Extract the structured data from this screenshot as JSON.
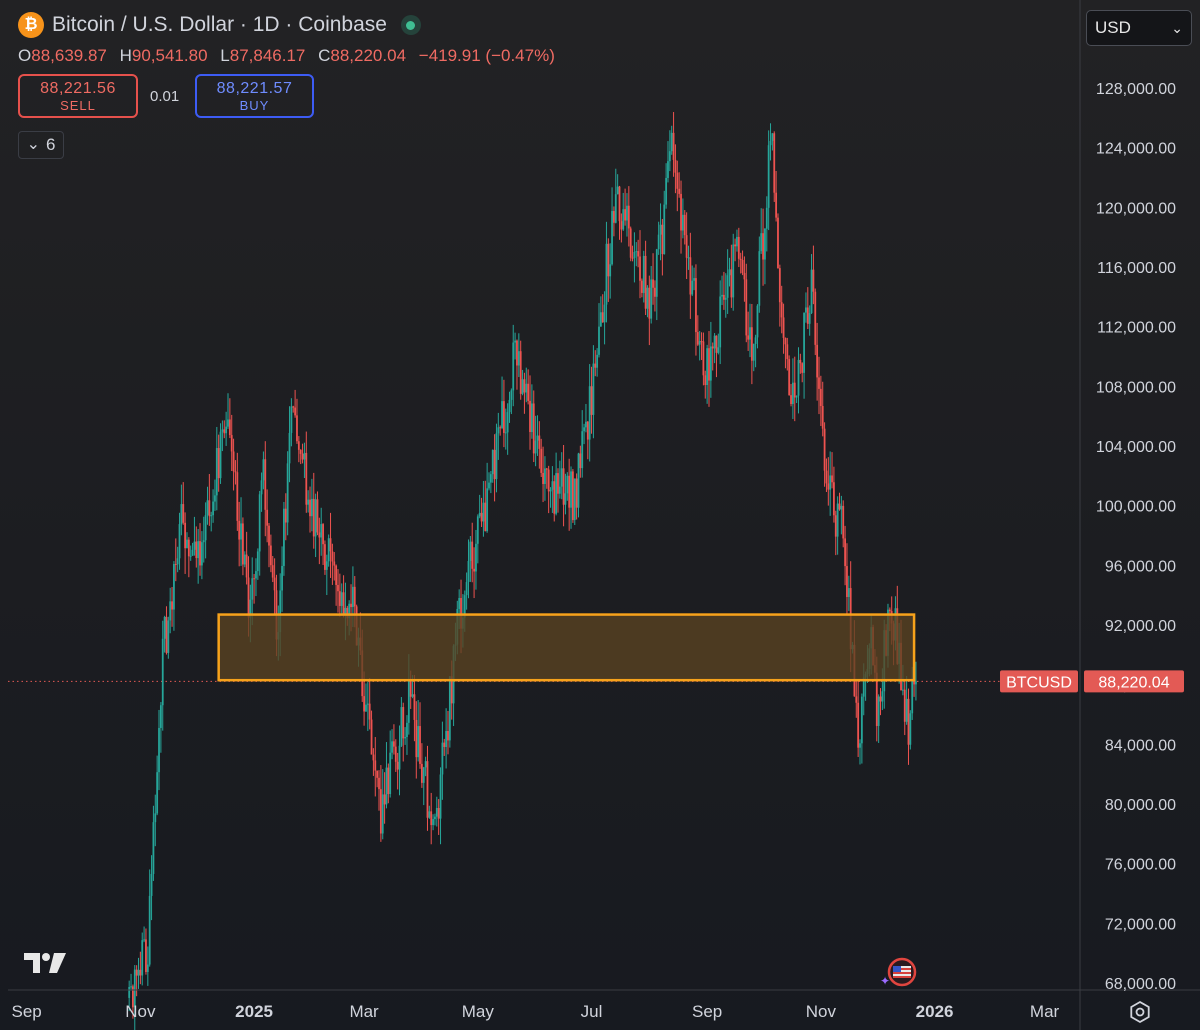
{
  "header": {
    "symbol_title": "Bitcoin / U.S. Dollar · 1D · Coinbase",
    "logo_glyph": "₿",
    "logo_color": "#f7931a",
    "live_status_color": "#3fbf93"
  },
  "ohlc": {
    "o_label": "O",
    "o_value": "88,639.87",
    "h_label": "H",
    "h_value": "90,541.80",
    "l_label": "L",
    "l_value": "87,846.17",
    "c_label": "C",
    "c_value": "88,220.04",
    "change": "−419.91 (−0.47%)"
  },
  "trade": {
    "sell_price": "88,221.56",
    "sell_label": "SELL",
    "buy_price": "88,221.57",
    "buy_label": "BUY",
    "spread": "0.01"
  },
  "indicators_toggle": {
    "chevron": "⌄",
    "count": "6"
  },
  "currency_select": {
    "value": "USD"
  },
  "colors": {
    "up": "#26a69a",
    "down": "#ef5350",
    "zone_border": "#f7a21b",
    "zone_fill": "#5a4221",
    "price_tag": "#e35a55",
    "grid_text": "#d1d4dc"
  },
  "chart_data": {
    "type": "candlestick",
    "title": "Bitcoin / U.S. Dollar · 1D · Coinbase",
    "symbol": "BTCUSD",
    "last_price": 88220.04,
    "last_price_label": "88,220.04",
    "ylim": [
      66800,
      131000
    ],
    "y_ticks": [
      {
        "value": 68000,
        "label": "68,000.00"
      },
      {
        "value": 72000,
        "label": "72,000.00"
      },
      {
        "value": 76000,
        "label": "76,000.00"
      },
      {
        "value": 80000,
        "label": "80,000.00"
      },
      {
        "value": 84000,
        "label": "84,000.00"
      },
      {
        "value": 88000,
        "label": "88,000.00"
      },
      {
        "value": 92000,
        "label": "92,000.00"
      },
      {
        "value": 96000,
        "label": "96,000.00"
      },
      {
        "value": 100000,
        "label": "100,000.00"
      },
      {
        "value": 104000,
        "label": "104,000.00"
      },
      {
        "value": 108000,
        "label": "108,000.00"
      },
      {
        "value": 112000,
        "label": "112,000.00"
      },
      {
        "value": 116000,
        "label": "116,000.00"
      },
      {
        "value": 120000,
        "label": "120,000.00"
      },
      {
        "value": 124000,
        "label": "124,000.00"
      },
      {
        "value": 128000,
        "label": "128,000.00"
      }
    ],
    "x_range": [
      "2024-08-22",
      "2026-03-20"
    ],
    "x_ticks": [
      {
        "date": "2024-09-01",
        "label": "Sep",
        "bold": false
      },
      {
        "date": "2024-11-01",
        "label": "Nov",
        "bold": false
      },
      {
        "date": "2025-01-01",
        "label": "2025",
        "bold": true
      },
      {
        "date": "2025-03-01",
        "label": "Mar",
        "bold": false
      },
      {
        "date": "2025-05-01",
        "label": "May",
        "bold": false
      },
      {
        "date": "2025-07-01",
        "label": "Jul",
        "bold": false
      },
      {
        "date": "2025-09-01",
        "label": "Sep",
        "bold": false
      },
      {
        "date": "2025-11-01",
        "label": "Nov",
        "bold": false
      },
      {
        "date": "2026-01-01",
        "label": "2026",
        "bold": true
      },
      {
        "date": "2026-03-01",
        "label": "Mar",
        "bold": false
      }
    ],
    "zone": {
      "start": "2024-12-13",
      "end": "2025-12-21",
      "top": 92700,
      "bottom": 88300
    },
    "price_path": [
      {
        "date": "2024-10-25",
        "close": 67000
      },
      {
        "date": "2024-11-05",
        "close": 70500
      },
      {
        "date": "2024-11-13",
        "close": 90000
      },
      {
        "date": "2024-11-22",
        "close": 98500
      },
      {
        "date": "2024-12-05",
        "close": 97500
      },
      {
        "date": "2024-12-17",
        "close": 106500
      },
      {
        "date": "2024-12-30",
        "close": 93000
      },
      {
        "date": "2025-01-06",
        "close": 101500
      },
      {
        "date": "2025-01-13",
        "close": 91500
      },
      {
        "date": "2025-01-21",
        "close": 106000
      },
      {
        "date": "2025-02-03",
        "close": 99000
      },
      {
        "date": "2025-02-24",
        "close": 92500
      },
      {
        "date": "2025-03-04",
        "close": 84000
      },
      {
        "date": "2025-03-10",
        "close": 79500
      },
      {
        "date": "2025-03-25",
        "close": 87000
      },
      {
        "date": "2025-04-08",
        "close": 78000
      },
      {
        "date": "2025-04-22",
        "close": 93500
      },
      {
        "date": "2025-05-08",
        "close": 101500
      },
      {
        "date": "2025-05-22",
        "close": 110500
      },
      {
        "date": "2025-06-05",
        "close": 101500
      },
      {
        "date": "2025-06-22",
        "close": 100500
      },
      {
        "date": "2025-07-03",
        "close": 109500
      },
      {
        "date": "2025-07-14",
        "close": 121000
      },
      {
        "date": "2025-08-03",
        "close": 113500
      },
      {
        "date": "2025-08-13",
        "close": 123500
      },
      {
        "date": "2025-08-31",
        "close": 108500
      },
      {
        "date": "2025-09-18",
        "close": 117500
      },
      {
        "date": "2025-09-25",
        "close": 109500
      },
      {
        "date": "2025-10-06",
        "close": 125500
      },
      {
        "date": "2025-10-10",
        "close": 113000
      },
      {
        "date": "2025-10-17",
        "close": 106500
      },
      {
        "date": "2025-10-27",
        "close": 114500
      },
      {
        "date": "2025-11-04",
        "close": 101500
      },
      {
        "date": "2025-11-13",
        "close": 98000
      },
      {
        "date": "2025-11-21",
        "close": 84500
      },
      {
        "date": "2025-11-27",
        "close": 91500
      },
      {
        "date": "2025-12-01",
        "close": 86500
      },
      {
        "date": "2025-12-09",
        "close": 93500
      },
      {
        "date": "2025-12-18",
        "close": 85500
      },
      {
        "date": "2025-12-22",
        "close": 88220
      }
    ]
  }
}
